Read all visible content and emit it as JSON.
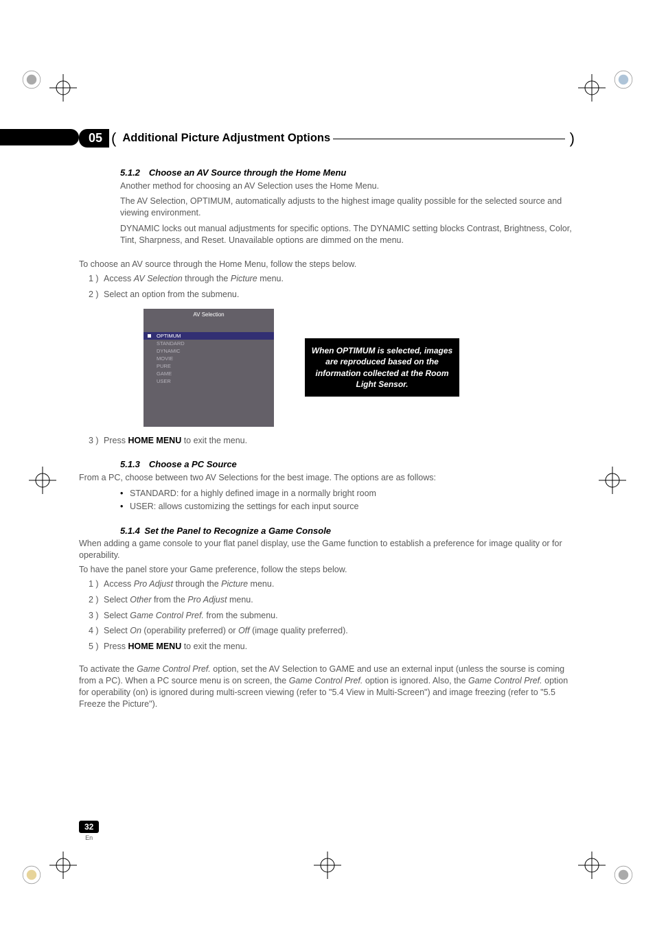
{
  "chapter_num": "05",
  "header_title": "Additional Picture Adjustment Options",
  "s512": {
    "heading": "5.1.2 Choose an AV Source through the Home Menu",
    "p1": "Another method for choosing an AV Selection uses the Home Menu.",
    "p2": "The AV Selection, OPTIMUM, automatically adjusts to the highest image quality possible for the selected source and viewing environment.",
    "p3": "DYNAMIC locks out manual adjustments for specific options. The DYNAMIC setting blocks Contrast, Brightness, Color, Tint, Sharpness, and Reset.  Unavailable options are dimmed on the menu.",
    "lead": "To choose an AV source through the Home Menu, follow the steps below.",
    "step1_pre": "Access ",
    "step1_i1": "AV Selection",
    "step1_mid": " through the ",
    "step1_i2": "Picture",
    "step1_post": " menu.",
    "step2": "Select an option from the submenu.",
    "step3_pre": "Press ",
    "step3_b": "HOME MENU",
    "step3_post": " to exit the menu."
  },
  "menu": {
    "title": "AV Selection",
    "items": [
      "OPTIMUM",
      "STANDARD",
      "DYNAMIC",
      "MOVIE",
      "PURE",
      "GAME",
      "USER"
    ],
    "selected": 0,
    "bg": "#646068",
    "sel_bg": "#322f73"
  },
  "callout": "When OPTIMUM is selected, images are reproduced based on the information collected at the Room Light Sensor.",
  "s513": {
    "heading": "5.1.3 Choose a PC Source",
    "p1": "From a PC, choose between two AV Selections for the best image. The options are as follows:",
    "b1": "STANDARD: for a highly defined image in a normally bright room",
    "b2": "USER: allows customizing the settings for each input source"
  },
  "s514": {
    "heading": "5.1.4 Set the Panel to Recognize a Game Console",
    "p1": "When adding a game console to your flat panel display, use the Game function to establish a preference for image quality or for operability.",
    "lead": "To have the panel store your Game preference, follow the steps below.",
    "st1_pre": "Access ",
    "st1_i1": "Pro Adjust ",
    "st1_mid": " through the ",
    "st1_i2": "Picture",
    "st1_post": " menu.",
    "st2_pre": "Select ",
    "st2_i1": "Other",
    "st2_mid": " from the ",
    "st2_i2": "Pro Adjust",
    "st2_post": " menu.",
    "st3_pre": "Select ",
    "st3_i1": "Game Control Pref.",
    "st3_post": "  from the submenu.",
    "st4_pre": "Select ",
    "st4_i1": "On",
    "st4_mid": " (operability preferred) or ",
    "st4_i2": "Off",
    "st4_post": " (image quality preferred).",
    "st5_pre": "Press ",
    "st5_b": "HOME MENU",
    "st5_post": " to exit the menu.",
    "para_a": "To activate the ",
    "para_i1": "Game Control Pref.",
    "para_b": " option, set the AV Selection to GAME and use an external input (unless the sourse is coming from a PC). When a PC source menu is on screen, the ",
    "para_i2": "Game Control Pref.",
    "para_c": " option is ignored. Also, the ",
    "para_i3": "Game Control Pref.",
    "para_d": " option for operability (on) is ignored during multi-screen viewing (refer to \"5.4 View in Multi-Screen\") and image freezing (refer to \"5.5 Freeze the Picture\")."
  },
  "page_num": "32",
  "page_lang": "En"
}
